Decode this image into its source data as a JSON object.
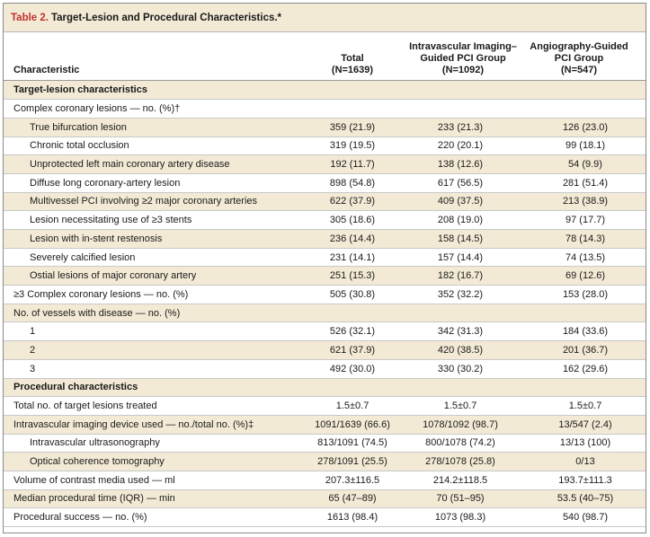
{
  "table": {
    "number": "Table 2.",
    "title": "Target-Lesion and Procedural Characteristics.*",
    "headers": {
      "characteristic": "Characteristic",
      "total": [
        "Total",
        "(N=1639)"
      ],
      "ivi": [
        "Intravascular Imaging–",
        "Guided PCI Group",
        "(N=1092)"
      ],
      "angio": [
        "Angiography-Guided",
        "PCI Group",
        "(N=547)"
      ]
    },
    "rows": [
      {
        "type": "section",
        "label": "Target-lesion characteristics"
      },
      {
        "type": "row",
        "indent": false,
        "label": "Complex coronary lesions — no. (%)†",
        "total": "",
        "ivi": "",
        "angio": ""
      },
      {
        "type": "row",
        "indent": true,
        "label": "True bifurcation lesion",
        "total": "359 (21.9)",
        "ivi": "233 (21.3)",
        "angio": "126 (23.0)"
      },
      {
        "type": "row",
        "indent": true,
        "label": "Chronic total occlusion",
        "total": "319 (19.5)",
        "ivi": "220 (20.1)",
        "angio": "99 (18.1)"
      },
      {
        "type": "row",
        "indent": true,
        "label": "Unprotected left main coronary artery disease",
        "total": "192 (11.7)",
        "ivi": "138 (12.6)",
        "angio": "54 (9.9)"
      },
      {
        "type": "row",
        "indent": true,
        "label": "Diffuse long coronary-artery lesion",
        "total": "898 (54.8)",
        "ivi": "617 (56.5)",
        "angio": "281 (51.4)"
      },
      {
        "type": "row",
        "indent": true,
        "label": "Multivessel PCI involving ≥2 major coronary arteries",
        "total": "622 (37.9)",
        "ivi": "409 (37.5)",
        "angio": "213 (38.9)"
      },
      {
        "type": "row",
        "indent": true,
        "label": "Lesion necessitating use of ≥3 stents",
        "total": "305 (18.6)",
        "ivi": "208 (19.0)",
        "angio": "97 (17.7)"
      },
      {
        "type": "row",
        "indent": true,
        "label": "Lesion with in-stent restenosis",
        "total": "236 (14.4)",
        "ivi": "158 (14.5)",
        "angio": "78 (14.3)"
      },
      {
        "type": "row",
        "indent": true,
        "label": "Severely calcified lesion",
        "total": "231 (14.1)",
        "ivi": "157 (14.4)",
        "angio": "74 (13.5)"
      },
      {
        "type": "row",
        "indent": true,
        "label": "Ostial lesions of major coronary artery",
        "total": "251 (15.3)",
        "ivi": "182 (16.7)",
        "angio": "69 (12.6)"
      },
      {
        "type": "row",
        "indent": false,
        "label": "≥3 Complex coronary lesions — no. (%)",
        "total": "505 (30.8)",
        "ivi": "352 (32.2)",
        "angio": "153 (28.0)"
      },
      {
        "type": "row",
        "indent": false,
        "label": "No. of vessels with disease — no. (%)",
        "total": "",
        "ivi": "",
        "angio": ""
      },
      {
        "type": "row",
        "indent": true,
        "label": "1",
        "total": "526 (32.1)",
        "ivi": "342 (31.3)",
        "angio": "184 (33.6)"
      },
      {
        "type": "row",
        "indent": true,
        "label": "2",
        "total": "621 (37.9)",
        "ivi": "420 (38.5)",
        "angio": "201 (36.7)"
      },
      {
        "type": "row",
        "indent": true,
        "label": "3",
        "total": "492 (30.0)",
        "ivi": "330 (30.2)",
        "angio": "162 (29.6)"
      },
      {
        "type": "section",
        "label": "Procedural characteristics"
      },
      {
        "type": "row",
        "indent": false,
        "label": "Total no. of target lesions treated",
        "total": "1.5±0.7",
        "ivi": "1.5±0.7",
        "angio": "1.5±0.7"
      },
      {
        "type": "row",
        "indent": false,
        "label": "Intravascular imaging device used — no./total no. (%)‡",
        "total": "1091/1639 (66.6)",
        "ivi": "1078/1092 (98.7)",
        "angio": "13/547 (2.4)"
      },
      {
        "type": "row",
        "indent": true,
        "label": "Intravascular ultrasonography",
        "total": "813/1091 (74.5)",
        "ivi": "800/1078 (74.2)",
        "angio": "13/13 (100)"
      },
      {
        "type": "row",
        "indent": true,
        "label": "Optical coherence tomography",
        "total": "278/1091 (25.5)",
        "ivi": "278/1078 (25.8)",
        "angio": "0/13"
      },
      {
        "type": "row",
        "indent": false,
        "label": "Volume of contrast media used — ml",
        "total": "207.3±116.5",
        "ivi": "214.2±118.5",
        "angio": "193.7±111.3"
      },
      {
        "type": "row",
        "indent": false,
        "label": "Median procedural time (IQR) — min",
        "total": "65 (47–89)",
        "ivi": "70 (51–95)",
        "angio": "53.5 (40–75)"
      },
      {
        "type": "row",
        "indent": false,
        "label": "Procedural success — no. (%)",
        "total": "1613 (98.4)",
        "ivi": "1073 (98.3)",
        "angio": "540 (98.7)"
      }
    ]
  },
  "colors": {
    "accent": "#c0302b",
    "band": "#f3ead6"
  }
}
